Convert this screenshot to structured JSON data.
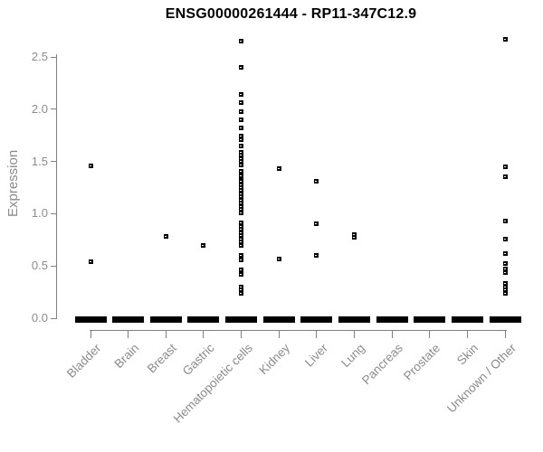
{
  "chart_data": {
    "type": "scatter",
    "title": "ENSG00000261444 - RP11-347C12.9",
    "xlabel": "",
    "ylabel": "Expression",
    "ytick_labels": [
      "0.0",
      "0.5",
      "1.0",
      "1.5",
      "2.0",
      "2.5"
    ],
    "ytick_values": [
      0.0,
      0.5,
      1.0,
      1.5,
      2.0,
      2.5
    ],
    "ylim": [
      0,
      2.8
    ],
    "grid": false,
    "legend": null,
    "marker": "small-black-square",
    "categories": [
      "Bladder",
      "Brain",
      "Breast",
      "Gastric",
      "Hematopoietic cells",
      "Kidney",
      "Liver",
      "Lung",
      "Pancreas",
      "Prostate",
      "Skin",
      "Unknown / Other"
    ],
    "series": [
      {
        "category": "Bladder",
        "zero_cluster": true,
        "values": [
          1.46,
          0.54
        ]
      },
      {
        "category": "Brain",
        "zero_cluster": true,
        "values": []
      },
      {
        "category": "Breast",
        "zero_cluster": true,
        "values": [
          0.78
        ]
      },
      {
        "category": "Gastric",
        "zero_cluster": true,
        "values": [
          0.7
        ]
      },
      {
        "category": "Hematopoietic cells",
        "zero_cluster": true,
        "values": [
          2.65,
          2.4,
          2.14,
          2.06,
          1.98,
          1.9,
          1.82,
          1.74,
          1.71,
          1.65,
          1.59,
          1.56,
          1.53,
          1.5,
          1.47,
          1.41,
          1.36,
          1.33,
          1.31,
          1.28,
          1.25,
          1.22,
          1.19,
          1.16,
          1.13,
          1.1,
          1.07,
          1.04,
          1.01,
          0.91,
          0.88,
          0.85,
          0.82,
          0.79,
          0.76,
          0.73,
          0.7,
          0.6,
          0.56,
          0.46,
          0.42,
          0.3,
          0.27,
          0.24
        ]
      },
      {
        "category": "Kidney",
        "zero_cluster": true,
        "values": [
          1.43,
          0.57
        ]
      },
      {
        "category": "Liver",
        "zero_cluster": true,
        "values": [
          1.31,
          0.9,
          0.6
        ]
      },
      {
        "category": "Lung",
        "zero_cluster": true,
        "values": [
          0.8,
          0.77
        ]
      },
      {
        "category": "Pancreas",
        "zero_cluster": true,
        "values": []
      },
      {
        "category": "Prostate",
        "zero_cluster": true,
        "values": []
      },
      {
        "category": "Skin",
        "zero_cluster": true,
        "values": []
      },
      {
        "category": "Unknown / Other",
        "zero_cluster": true,
        "values": [
          2.67,
          1.45,
          1.35,
          0.93,
          0.76,
          0.62,
          0.52,
          0.47,
          0.44,
          0.33,
          0.3,
          0.27,
          0.24
        ]
      }
    ],
    "colors": {
      "marker": "#000000",
      "axis": "#808080",
      "tick_text": "#8b8b8b",
      "title_text": "#000000",
      "background": "#ffffff"
    }
  }
}
